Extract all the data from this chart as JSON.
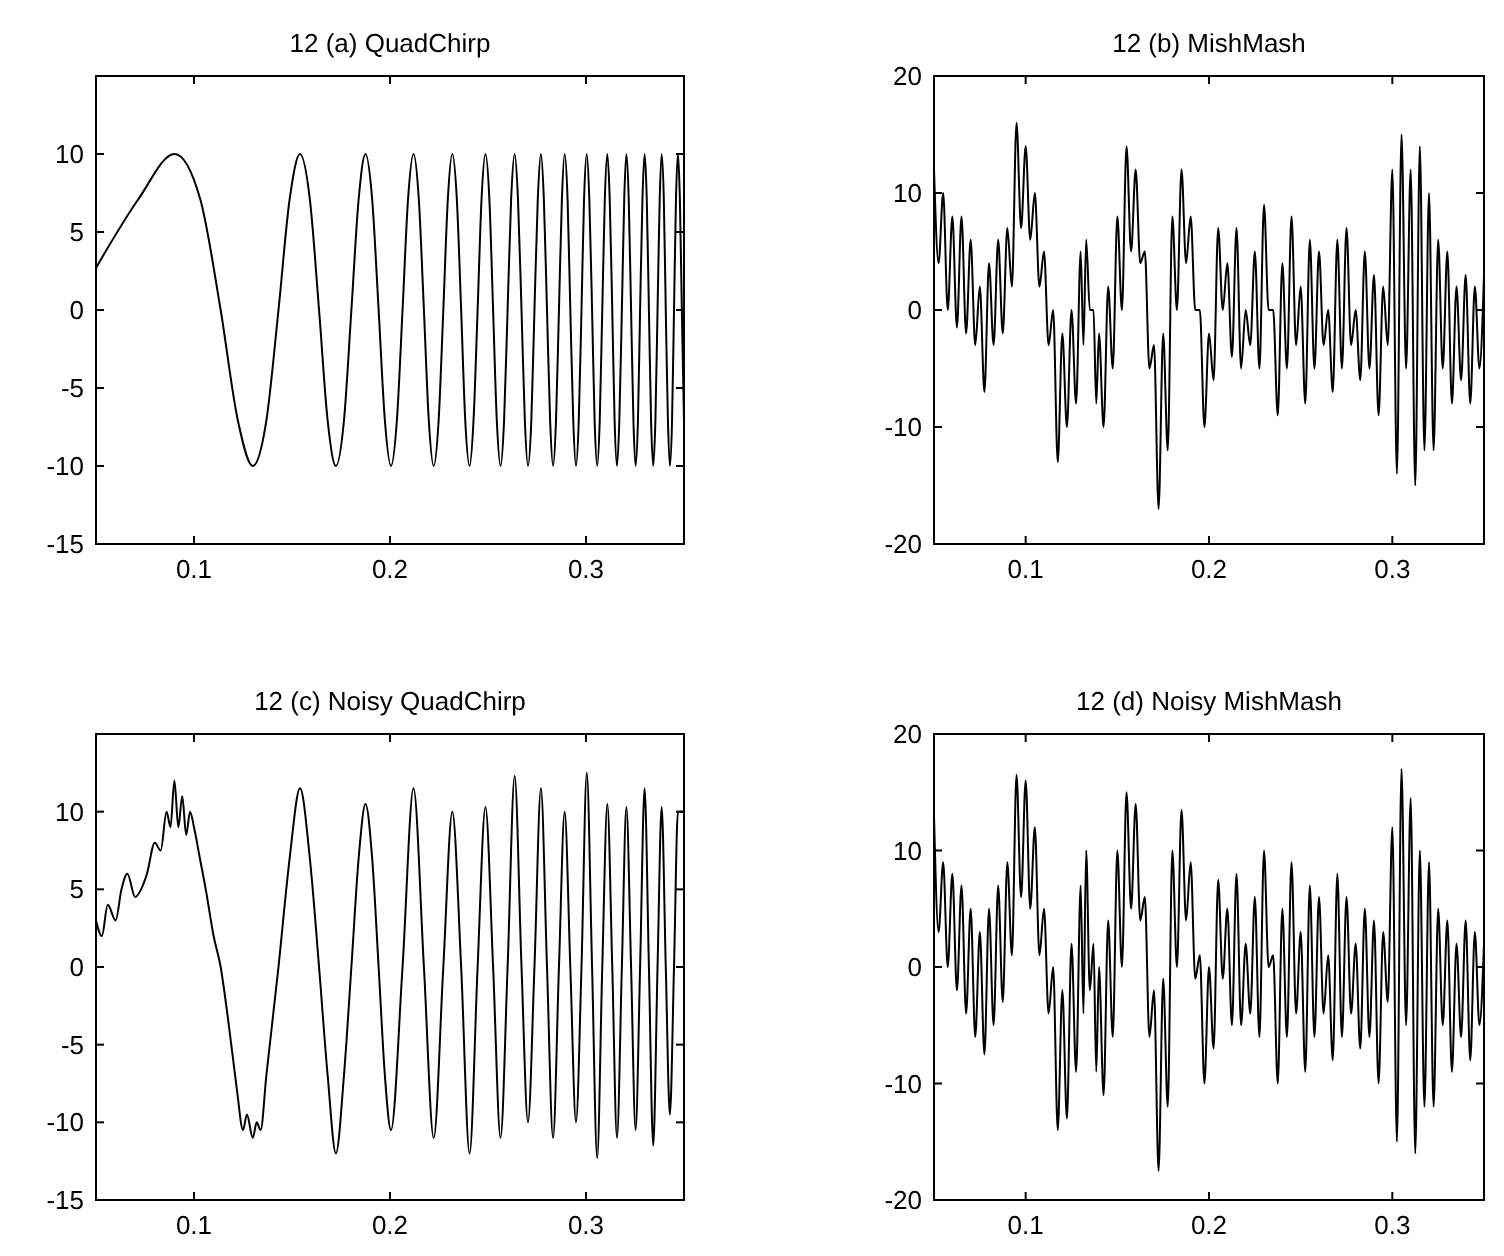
{
  "chart_data": [
    {
      "type": "line",
      "title": "12 (a) QuadChirp",
      "color": "#000000",
      "xlim": [
        0.05,
        0.35
      ],
      "ylim": [
        -15,
        15
      ],
      "xticks": [
        0.1,
        0.2,
        0.3
      ],
      "yticks": [
        -15,
        -10,
        -5,
        0,
        5,
        10
      ],
      "x": [
        0.05,
        0.0716,
        0.0901,
        0.1032,
        0.1136,
        0.1224,
        0.13,
        0.1369,
        0.1431,
        0.1488,
        0.1541,
        0.1591,
        0.1638,
        0.1682,
        0.1724,
        0.1765,
        0.1803,
        0.184,
        0.1875,
        0.1909,
        0.1942,
        0.1974,
        0.2005,
        0.2035,
        0.2064,
        0.2092,
        0.212,
        0.2147,
        0.2173,
        0.2198,
        0.2223,
        0.2248,
        0.2272,
        0.2295,
        0.2318,
        0.2341,
        0.2363,
        0.2384,
        0.2406,
        0.2426,
        0.2447,
        0.2467,
        0.2487,
        0.2507,
        0.2526,
        0.2545,
        0.2564,
        0.2582,
        0.26,
        0.2618,
        0.2636,
        0.2653,
        0.2671,
        0.2688,
        0.2704,
        0.2721,
        0.2737,
        0.2754,
        0.277,
        0.2785,
        0.2801,
        0.2817,
        0.2832,
        0.2847,
        0.2862,
        0.2877,
        0.2891,
        0.2906,
        0.292,
        0.2935,
        0.2949,
        0.2963,
        0.2977,
        0.299,
        0.3004,
        0.3017,
        0.3031,
        0.3044,
        0.3057,
        0.307,
        0.3083,
        0.3096,
        0.3109,
        0.3121,
        0.3134,
        0.3146,
        0.3158,
        0.317,
        0.3183,
        0.3195,
        0.3206,
        0.3218,
        0.323,
        0.3242,
        0.3253,
        0.3265,
        0.3276,
        0.3288,
        0.3299,
        0.331,
        0.3321,
        0.3332,
        0.3343,
        0.3354,
        0.3365,
        0.3376,
        0.3386,
        0.3397,
        0.3407,
        0.3418,
        0.3428,
        0.3439,
        0.3449,
        0.3459,
        0.3469,
        0.3479,
        0.3489,
        0.35
      ],
      "values": [
        2.7,
        7.1,
        10,
        7.1,
        0,
        -7.1,
        -10,
        -7.1,
        0,
        7.1,
        10,
        7.1,
        0,
        -7.1,
        -10,
        -7.1,
        0,
        7.1,
        10,
        7.1,
        0,
        -7.1,
        -10,
        -7.1,
        0,
        7.1,
        10,
        7.1,
        0,
        -7.1,
        -10,
        -7.1,
        0,
        7.1,
        10,
        7.1,
        0,
        -7.1,
        -10,
        -7.1,
        0,
        7.1,
        10,
        7.1,
        0,
        -7.1,
        -10,
        -7.1,
        0,
        7.1,
        10,
        7.1,
        0,
        -7.1,
        -10,
        -7.1,
        0,
        7.1,
        10,
        7.1,
        0,
        -7.1,
        -10,
        -7.1,
        0,
        7.1,
        10,
        7.1,
        0,
        -7.1,
        -10,
        -7.1,
        0,
        7.1,
        10,
        7.1,
        0,
        -7.1,
        -10,
        -7.1,
        0,
        7.1,
        10,
        7.1,
        0,
        -7.1,
        -10,
        -7.1,
        0,
        7.1,
        10,
        7.1,
        0,
        -7.1,
        -10,
        -7.1,
        0,
        7.1,
        10,
        7.1,
        0,
        -7.1,
        -10,
        -7.1,
        0,
        7.1,
        10,
        7.1,
        0,
        -7.1,
        -10,
        -7.1,
        0,
        7.1,
        10,
        7.1,
        0,
        -7.1
      ]
    },
    {
      "type": "line",
      "title": "12 (b) MishMash",
      "color": "#000000",
      "xlim": [
        0.05,
        0.35
      ],
      "ylim": [
        -20,
        20
      ],
      "xticks": [
        0.1,
        0.2,
        0.3
      ],
      "yticks": [
        -20,
        -10,
        0,
        10,
        20
      ],
      "x": [
        0.05,
        0.0525,
        0.055,
        0.0575,
        0.06,
        0.0625,
        0.065,
        0.0675,
        0.07,
        0.0725,
        0.075,
        0.0775,
        0.08,
        0.0825,
        0.085,
        0.0875,
        0.09,
        0.0925,
        0.095,
        0.0975,
        0.1,
        0.1025,
        0.105,
        0.1075,
        0.11,
        0.1125,
        0.115,
        0.1175,
        0.12,
        0.1225,
        0.125,
        0.1275,
        0.13,
        0.1315,
        0.133,
        0.135,
        0.137,
        0.1385,
        0.14,
        0.1425,
        0.145,
        0.1475,
        0.15,
        0.1525,
        0.155,
        0.1575,
        0.16,
        0.1625,
        0.165,
        0.1675,
        0.17,
        0.1725,
        0.175,
        0.1775,
        0.18,
        0.1825,
        0.185,
        0.1875,
        0.19,
        0.1925,
        0.195,
        0.1975,
        0.2,
        0.2025,
        0.205,
        0.2075,
        0.21,
        0.2125,
        0.215,
        0.2175,
        0.22,
        0.2225,
        0.225,
        0.2275,
        0.23,
        0.2325,
        0.235,
        0.2375,
        0.24,
        0.2425,
        0.245,
        0.2475,
        0.25,
        0.2525,
        0.255,
        0.2575,
        0.26,
        0.2625,
        0.265,
        0.2675,
        0.27,
        0.2725,
        0.275,
        0.2775,
        0.28,
        0.2825,
        0.285,
        0.2875,
        0.29,
        0.2925,
        0.295,
        0.2975,
        0.3,
        0.3025,
        0.305,
        0.3075,
        0.31,
        0.3125,
        0.315,
        0.3175,
        0.32,
        0.3225,
        0.325,
        0.3275,
        0.33,
        0.3325,
        0.335,
        0.3375,
        0.34,
        0.3425,
        0.345,
        0.3475,
        0.35
      ],
      "values": [
        12,
        4,
        10,
        0,
        8,
        -1.5,
        8,
        -2,
        6,
        -3,
        2,
        -7,
        4,
        -3,
        6,
        -2,
        7,
        2,
        16,
        7,
        14,
        6,
        10,
        2,
        5,
        -3,
        0,
        -13,
        -2,
        -10,
        0,
        -8,
        5,
        -3,
        6,
        0,
        0,
        -8,
        -2,
        -10,
        2,
        -5,
        8,
        0,
        14,
        5,
        12,
        4,
        5,
        -5,
        -3,
        -17,
        -2,
        -12,
        8,
        0,
        12,
        4,
        8,
        0,
        0,
        -10,
        -2,
        -6,
        7,
        0,
        4,
        -4,
        7,
        -5,
        0,
        -3,
        5,
        -5,
        9,
        0,
        0,
        -9,
        4,
        -5,
        8,
        -3,
        2,
        -8,
        6,
        -5,
        5,
        -3,
        0,
        -7,
        6,
        -5,
        7,
        -3,
        0,
        -6,
        5,
        -5,
        3,
        -9,
        2,
        -3,
        12,
        -14,
        15,
        -5,
        12,
        -15,
        14,
        -12,
        10,
        -12,
        6,
        -5,
        5,
        -8,
        2,
        -6,
        3,
        -8,
        2,
        -5,
        3
      ]
    },
    {
      "type": "line",
      "title": "12 (c) Noisy QuadChirp",
      "color": "#000000",
      "xlim": [
        0.05,
        0.35
      ],
      "ylim": [
        -15,
        15
      ],
      "xticks": [
        0.1,
        0.2,
        0.3
      ],
      "yticks": [
        -15,
        -10,
        -5,
        0,
        5,
        10
      ],
      "x": [
        0.05,
        0.053,
        0.056,
        0.06,
        0.063,
        0.066,
        0.07,
        0.073,
        0.076,
        0.08,
        0.083,
        0.086,
        0.088,
        0.09,
        0.092,
        0.094,
        0.096,
        0.098,
        0.1,
        0.103,
        0.106,
        0.11,
        0.1136,
        0.117,
        0.12,
        0.122,
        0.125,
        0.127,
        0.13,
        0.132,
        0.134,
        0.1369,
        0.1431,
        0.1488,
        0.1541,
        0.1591,
        0.1638,
        0.1682,
        0.1724,
        0.1765,
        0.1803,
        0.184,
        0.1875,
        0.1909,
        0.1942,
        0.1974,
        0.2005,
        0.2064,
        0.212,
        0.2173,
        0.2223,
        0.2272,
        0.2318,
        0.2363,
        0.2406,
        0.2447,
        0.2487,
        0.2526,
        0.2564,
        0.26,
        0.2636,
        0.2671,
        0.2704,
        0.2737,
        0.277,
        0.2801,
        0.2832,
        0.2862,
        0.2891,
        0.292,
        0.2949,
        0.2977,
        0.3004,
        0.3031,
        0.3057,
        0.3083,
        0.3109,
        0.3134,
        0.3158,
        0.3183,
        0.3206,
        0.323,
        0.3253,
        0.3276,
        0.3299,
        0.3321,
        0.3343,
        0.3365,
        0.3386,
        0.3407,
        0.3428,
        0.3449,
        0.3469,
        0.35
      ],
      "values": [
        3,
        2,
        4,
        3,
        5,
        6,
        4.5,
        5,
        6,
        8,
        7.5,
        10,
        9,
        12,
        9,
        11,
        8.5,
        10,
        9,
        7,
        5,
        2,
        0,
        -3,
        -6,
        -8,
        -10.5,
        -9.5,
        -11,
        -10,
        -10.5,
        -7,
        0,
        7,
        11.5,
        7,
        0,
        -7,
        -12,
        -7,
        0,
        7,
        10.5,
        7,
        0,
        -7,
        -10.5,
        0,
        11.5,
        0,
        -11,
        0,
        10,
        0,
        -12,
        0,
        10.3,
        0,
        -11,
        0,
        12.3,
        0,
        -10,
        0,
        11.5,
        0,
        -11,
        0,
        10,
        0,
        -10,
        0,
        12.5,
        0,
        -12.3,
        0,
        10.5,
        0,
        -11,
        0,
        10.3,
        0,
        -10.5,
        0,
        11.5,
        0,
        -11.5,
        0,
        10.3,
        0,
        -9.5,
        0,
        10,
        10
      ]
    },
    {
      "type": "line",
      "title": "12 (d) Noisy MishMash",
      "color": "#000000",
      "xlim": [
        0.05,
        0.35
      ],
      "ylim": [
        -20,
        20
      ],
      "xticks": [
        0.1,
        0.2,
        0.3
      ],
      "yticks": [
        -20,
        -10,
        0,
        10,
        20
      ],
      "x": [
        0.05,
        0.0525,
        0.055,
        0.0575,
        0.06,
        0.0625,
        0.065,
        0.0675,
        0.07,
        0.0725,
        0.075,
        0.0775,
        0.08,
        0.0825,
        0.085,
        0.0875,
        0.09,
        0.0925,
        0.095,
        0.0975,
        0.1,
        0.1025,
        0.105,
        0.1075,
        0.11,
        0.1125,
        0.115,
        0.1175,
        0.12,
        0.1225,
        0.125,
        0.1275,
        0.13,
        0.1315,
        0.133,
        0.135,
        0.137,
        0.1385,
        0.14,
        0.1425,
        0.145,
        0.1475,
        0.15,
        0.1525,
        0.155,
        0.1575,
        0.16,
        0.1625,
        0.165,
        0.1675,
        0.17,
        0.1725,
        0.175,
        0.1775,
        0.18,
        0.1825,
        0.185,
        0.1875,
        0.19,
        0.1925,
        0.195,
        0.1975,
        0.2,
        0.2025,
        0.205,
        0.2075,
        0.21,
        0.2125,
        0.215,
        0.2175,
        0.22,
        0.2225,
        0.225,
        0.2275,
        0.23,
        0.2325,
        0.235,
        0.2375,
        0.24,
        0.2425,
        0.245,
        0.2475,
        0.25,
        0.2525,
        0.255,
        0.2575,
        0.26,
        0.2625,
        0.265,
        0.2675,
        0.27,
        0.2725,
        0.275,
        0.2775,
        0.28,
        0.2825,
        0.285,
        0.2875,
        0.29,
        0.2925,
        0.295,
        0.2975,
        0.3,
        0.3025,
        0.305,
        0.3075,
        0.31,
        0.3125,
        0.315,
        0.3175,
        0.32,
        0.3225,
        0.325,
        0.3275,
        0.33,
        0.3325,
        0.335,
        0.3375,
        0.34,
        0.3425,
        0.345,
        0.3475,
        0.35
      ],
      "values": [
        13,
        3,
        9,
        0,
        8,
        -2,
        7,
        -4,
        5,
        -6,
        3,
        -7.5,
        5,
        -5,
        7,
        -3,
        9,
        1,
        16.5,
        6,
        16,
        5,
        12,
        1,
        5,
        -4,
        0,
        -14,
        -2,
        -13,
        2,
        -9,
        7,
        -4,
        10,
        -2,
        2,
        -9,
        0,
        -11,
        4,
        -6,
        10,
        0,
        15,
        5,
        14,
        4,
        6,
        -6,
        -2,
        -17.5,
        -1,
        -12,
        10,
        0,
        13.5,
        4,
        9,
        -1,
        1,
        -10,
        0,
        -7,
        7.5,
        -1,
        5,
        -5,
        8,
        -5,
        2,
        -4,
        6,
        -6,
        10,
        0,
        1,
        -10,
        5,
        -6,
        9,
        -4,
        3,
        -9,
        7,
        -6,
        6,
        -4,
        1,
        -8,
        8,
        -6,
        6,
        -4,
        2,
        -7,
        5,
        -6,
        4,
        -10,
        3,
        -3,
        12,
        -15,
        17,
        -5,
        14.5,
        -16,
        10,
        -12,
        9,
        -12,
        5,
        -5,
        4,
        -9,
        2,
        -6,
        4,
        -8,
        3,
        -5,
        2
      ]
    }
  ]
}
